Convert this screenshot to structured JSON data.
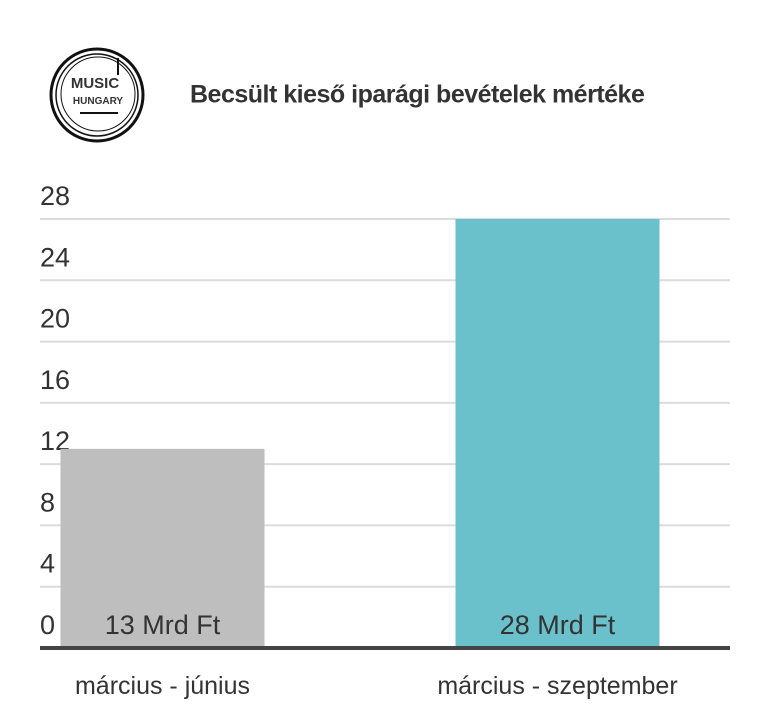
{
  "logo": [
    "MUSIC",
    "HUNGARY"
  ],
  "chart_data": {
    "type": "bar",
    "title": "Becsült kieső iparági bevételek mértéke",
    "categories": [
      "március - június",
      "március - szeptember"
    ],
    "values": [
      13,
      28
    ],
    "value_labels": [
      "13 Mrd Ft",
      "28 Mrd Ft"
    ],
    "colors": [
      "#bebebe",
      "#6bc1cb"
    ],
    "ylim": [
      0,
      28
    ],
    "yticks": [
      0,
      4,
      8,
      12,
      16,
      20,
      24,
      28
    ],
    "grid": true
  }
}
